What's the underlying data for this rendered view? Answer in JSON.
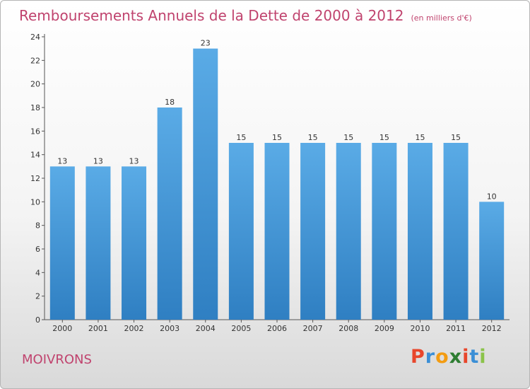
{
  "title": "Remboursements Annuels de la Dette de 2000 à 2012",
  "unit": "(en milliers d'€)",
  "commune": "MOIVRONS",
  "logo": {
    "letters": [
      "P",
      "r",
      "o",
      "x",
      "i",
      "t",
      "i"
    ],
    "colors": [
      "#e8462b",
      "#3b8fd6",
      "#f39c12",
      "#2e7d32",
      "#e8462b",
      "#3b8fd6",
      "#8bc34a"
    ]
  },
  "colors": {
    "bar_top": "#5aabe6",
    "bar_bottom": "#2f7fc2",
    "title": "#c0436e"
  },
  "chart_data": {
    "type": "bar",
    "title": "Remboursements Annuels de la Dette de 2000 à 2012",
    "categories": [
      "2000",
      "2001",
      "2002",
      "2003",
      "2004",
      "2005",
      "2006",
      "2007",
      "2008",
      "2009",
      "2010",
      "2011",
      "2012"
    ],
    "values": [
      13,
      13,
      13,
      18,
      23,
      15,
      15,
      15,
      15,
      15,
      15,
      15,
      10
    ],
    "data_labels": [
      "13",
      "13",
      "13",
      "18",
      "23",
      "15",
      "15",
      "15",
      "15",
      "15",
      "15",
      "15",
      "10"
    ],
    "yticks": [
      "0",
      "2",
      "4",
      "6",
      "8",
      "10",
      "12",
      "14",
      "16",
      "18",
      "20",
      "22",
      "24"
    ],
    "ylim": [
      0,
      24
    ],
    "grid": false,
    "legend": "none"
  }
}
